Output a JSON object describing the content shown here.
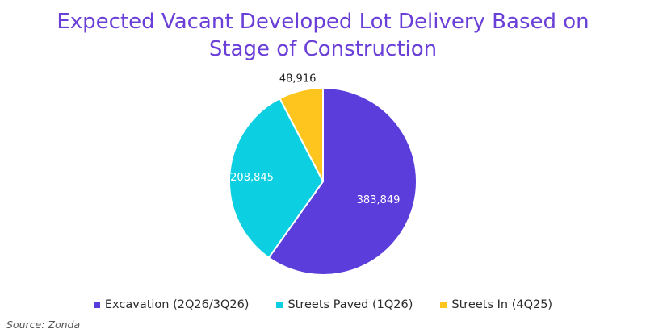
{
  "title": {
    "line1": "Expected Vacant Developed Lot Delivery Based on",
    "line2": "Stage of Construction"
  },
  "chart_data": {
    "type": "pie",
    "title": "Expected Vacant Developed Lot Delivery Based on Stage of Construction",
    "start_angle": "12 o'clock",
    "direction": "clockwise",
    "slices": [
      {
        "label": "Excavation (2Q26/3Q26)",
        "value": 383849,
        "display": "383,849",
        "color": "#5b3ddb",
        "label_color": "#ffffff"
      },
      {
        "label": "Streets Paved (1Q26)",
        "value": 208845,
        "display": "208,845",
        "color": "#0ccfe2",
        "label_color": "#ffffff"
      },
      {
        "label": "Streets In (4Q25)",
        "value": 48916,
        "display": "48,916",
        "color": "#ffc51f",
        "label_color": "#222222"
      }
    ],
    "legend_placement": "bottom"
  },
  "source": "Source: Zonda"
}
